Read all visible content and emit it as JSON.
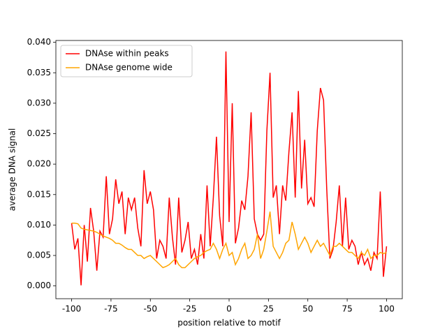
{
  "chart_data": {
    "type": "line",
    "xlabel": "position relative to motif",
    "ylabel": "average DNA signal",
    "x": [
      -100,
      -98,
      -96,
      -94,
      -92,
      -90,
      -88,
      -86,
      -84,
      -82,
      -80,
      -78,
      -76,
      -74,
      -72,
      -70,
      -68,
      -66,
      -64,
      -62,
      -60,
      -58,
      -56,
      -54,
      -52,
      -50,
      -48,
      -46,
      -44,
      -42,
      -40,
      -38,
      -36,
      -34,
      -32,
      -30,
      -28,
      -26,
      -24,
      -22,
      -20,
      -18,
      -16,
      -14,
      -12,
      -10,
      -8,
      -6,
      -4,
      -2,
      0,
      2,
      4,
      6,
      8,
      10,
      12,
      14,
      16,
      18,
      20,
      22,
      24,
      26,
      28,
      30,
      32,
      34,
      36,
      38,
      40,
      42,
      44,
      46,
      48,
      50,
      52,
      54,
      56,
      58,
      60,
      62,
      64,
      66,
      68,
      70,
      72,
      74,
      76,
      78,
      80,
      82,
      84,
      86,
      88,
      90,
      92,
      94,
      96,
      98,
      100
    ],
    "series": [
      {
        "name": "DNAse within peaks",
        "color": "#ff0000",
        "values": [
          0.0103,
          0.006,
          0.0078,
          0.0001,
          0.01,
          0.004,
          0.0128,
          0.009,
          0.0025,
          0.009,
          0.008,
          0.018,
          0.0085,
          0.011,
          0.0175,
          0.0135,
          0.0155,
          0.0085,
          0.0145,
          0.0125,
          0.0145,
          0.0095,
          0.0065,
          0.019,
          0.0135,
          0.0155,
          0.0125,
          0.0045,
          0.0075,
          0.0065,
          0.0045,
          0.0145,
          0.008,
          0.0035,
          0.0145,
          0.0055,
          0.0075,
          0.0105,
          0.0045,
          0.006,
          0.0035,
          0.0085,
          0.0045,
          0.0165,
          0.0065,
          0.0145,
          0.0245,
          0.0115,
          0.0065,
          0.0385,
          0.0105,
          0.03,
          0.007,
          0.0095,
          0.014,
          0.0125,
          0.018,
          0.0285,
          0.011,
          0.0085,
          0.0075,
          0.0085,
          0.0255,
          0.035,
          0.0145,
          0.0165,
          0.0085,
          0.0165,
          0.014,
          0.022,
          0.0285,
          0.0145,
          0.032,
          0.016,
          0.024,
          0.0135,
          0.0145,
          0.013,
          0.0255,
          0.0325,
          0.0305,
          0.016,
          0.0045,
          0.006,
          0.0105,
          0.0165,
          0.0065,
          0.0145,
          0.006,
          0.0075,
          0.0065,
          0.0035,
          0.0055,
          0.0035,
          0.0045,
          0.0025,
          0.0055,
          0.0045,
          0.0155,
          0.0015,
          0.0065
        ]
      },
      {
        "name": "DNAse genome wide",
        "color": "#ffa500",
        "values": [
          0.0103,
          0.0103,
          0.0102,
          0.0095,
          0.0093,
          0.0092,
          0.0091,
          0.009,
          0.0088,
          0.0085,
          0.0082,
          0.008,
          0.0078,
          0.0075,
          0.007,
          0.007,
          0.0067,
          0.0063,
          0.006,
          0.006,
          0.0055,
          0.005,
          0.005,
          0.0045,
          0.0048,
          0.005,
          0.0045,
          0.004,
          0.0035,
          0.003,
          0.0032,
          0.0035,
          0.004,
          0.0045,
          0.0035,
          0.003,
          0.003,
          0.0035,
          0.004,
          0.0045,
          0.0048,
          0.005,
          0.0055,
          0.0058,
          0.006,
          0.007,
          0.006,
          0.0045,
          0.006,
          0.007,
          0.005,
          0.0055,
          0.0035,
          0.0045,
          0.006,
          0.007,
          0.0045,
          0.005,
          0.006,
          0.0085,
          0.0045,
          0.006,
          0.009,
          0.0122,
          0.0065,
          0.0055,
          0.0045,
          0.0055,
          0.007,
          0.0075,
          0.0105,
          0.0085,
          0.006,
          0.007,
          0.008,
          0.007,
          0.0055,
          0.0065,
          0.0075,
          0.0065,
          0.007,
          0.006,
          0.005,
          0.0065,
          0.0065,
          0.007,
          0.0065,
          0.006,
          0.0055,
          0.0055,
          0.005,
          0.0045,
          0.0055,
          0.005,
          0.006,
          0.0045,
          0.005,
          0.005,
          0.0055,
          0.0053,
          0.0055
        ]
      }
    ],
    "xlim": [
      -110,
      110
    ],
    "xticks": [
      -100,
      -75,
      -50,
      -25,
      0,
      25,
      50,
      75,
      100
    ],
    "ylim": [
      -0.0021,
      0.0403
    ],
    "yticks": [
      {
        "value": 0,
        "label": "0.000"
      },
      {
        "value": 0.005,
        "label": "0.005"
      },
      {
        "value": 0.01,
        "label": "0.010"
      },
      {
        "value": 0.015,
        "label": "0.015"
      },
      {
        "value": 0.02,
        "label": "0.020"
      },
      {
        "value": 0.025,
        "label": "0.025"
      },
      {
        "value": 0.03,
        "label": "0.030"
      },
      {
        "value": 0.035,
        "label": "0.035"
      },
      {
        "value": 0.04,
        "label": "0.040"
      }
    ],
    "legend": "upper left"
  }
}
